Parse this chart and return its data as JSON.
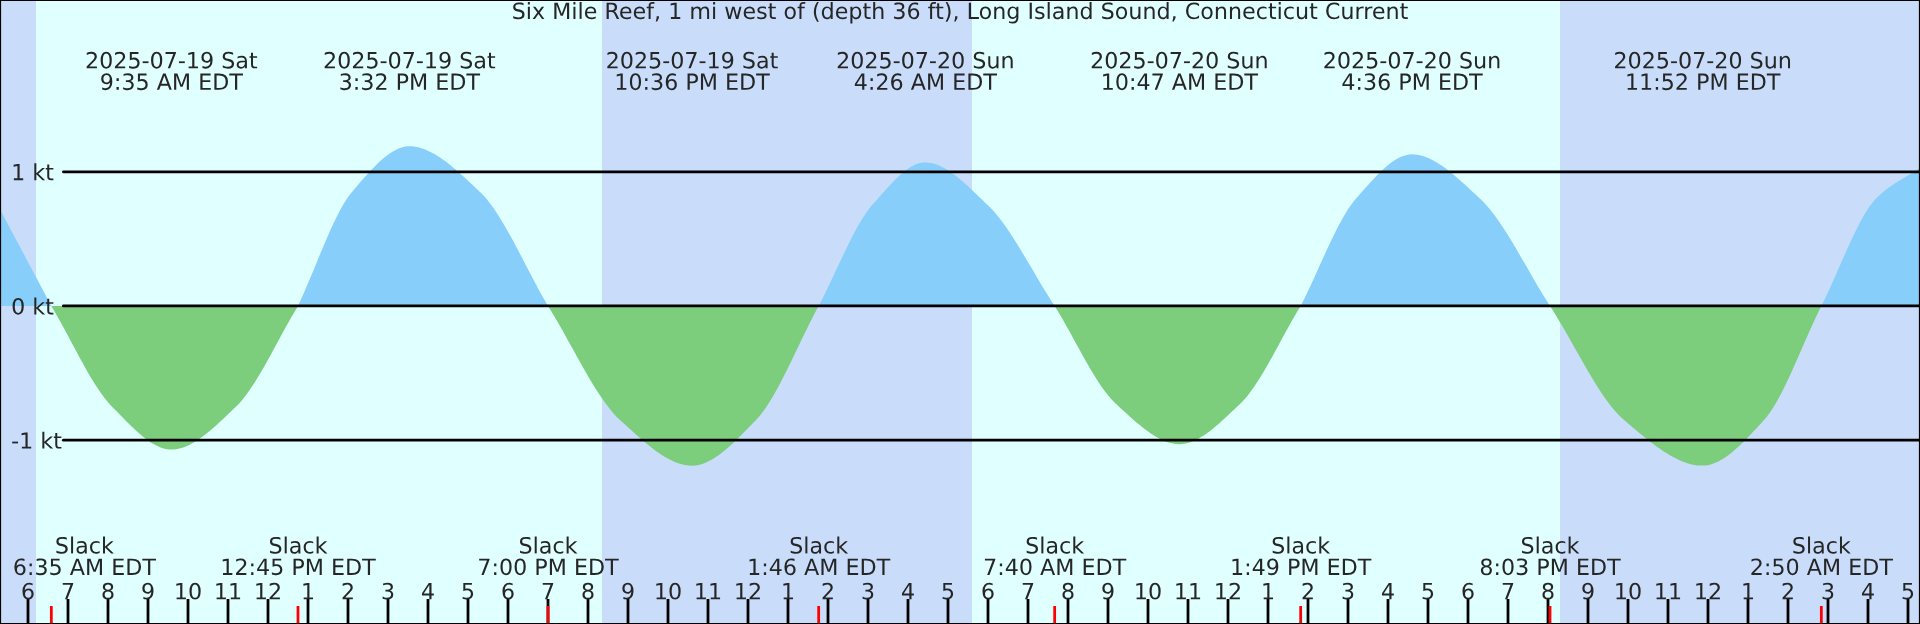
{
  "chart_data": {
    "type": "area",
    "title": "Six Mile Reef, 1 mi west of (depth 36 ft), Long Island Sound, Connecticut Current",
    "x": [
      "2025-07-19T05:18",
      "2025-07-19T06:35",
      "2025-07-19T08:06",
      "2025-07-19T09:35",
      "2025-07-19T11:12",
      "2025-07-19T12:45",
      "2025-07-19T14:06",
      "2025-07-19T15:32",
      "2025-07-19T17:18",
      "2025-07-19T19:00",
      "2025-07-19T20:48",
      "2025-07-19T22:36",
      "2025-07-20T00:12",
      "2025-07-20T01:46",
      "2025-07-20T03:06",
      "2025-07-20T04:26",
      "2025-07-20T06:00",
      "2025-07-20T07:40",
      "2025-07-20T09:12",
      "2025-07-20T10:47",
      "2025-07-20T12:18",
      "2025-07-20T13:49",
      "2025-07-20T15:12",
      "2025-07-20T16:36",
      "2025-07-20T18:18",
      "2025-07-20T20:03",
      "2025-07-20T21:54",
      "2025-07-20T23:52",
      "2025-07-21T01:24",
      "2025-07-21T02:50",
      "2025-07-21T04:12",
      "2025-07-21T05:18"
    ],
    "series": [
      {
        "color": "#87cefa",
        "values": [
          0.72,
          0,
          null,
          null,
          null,
          0,
          0.85,
          1.19,
          0.85,
          0,
          null,
          null,
          null,
          0,
          0.75,
          1.07,
          0.75,
          0,
          null,
          null,
          null,
          0,
          0.8,
          1.13,
          0.8,
          0,
          null,
          null,
          null,
          0,
          0.8,
          1.03
        ]
      },
      {
        "color": "#7ccd7c",
        "values": [
          null,
          0,
          -0.75,
          -1.07,
          -0.75,
          0,
          null,
          null,
          null,
          0,
          -0.85,
          -1.19,
          -0.85,
          0,
          null,
          null,
          null,
          0,
          -0.73,
          -1.03,
          -0.73,
          0,
          null,
          null,
          null,
          0,
          -0.85,
          -1.19,
          -0.85,
          0,
          null,
          null
        ]
      }
    ],
    "xlim": [
      "2025-07-19T05:18",
      "2025-07-21T05:18"
    ],
    "xticks": [
      {
        "value": "2025-07-19T06:00",
        "label": "6"
      },
      {
        "value": "2025-07-19T07:00",
        "label": "7"
      },
      {
        "value": "2025-07-19T08:00",
        "label": "8"
      },
      {
        "value": "2025-07-19T09:00",
        "label": "9"
      },
      {
        "value": "2025-07-19T10:00",
        "label": "10"
      },
      {
        "value": "2025-07-19T11:00",
        "label": "11"
      },
      {
        "value": "2025-07-19T12:00",
        "label": "12"
      },
      {
        "value": "2025-07-19T13:00",
        "label": "1"
      },
      {
        "value": "2025-07-19T14:00",
        "label": "2"
      },
      {
        "value": "2025-07-19T15:00",
        "label": "3"
      },
      {
        "value": "2025-07-19T16:00",
        "label": "4"
      },
      {
        "value": "2025-07-19T17:00",
        "label": "5"
      },
      {
        "value": "2025-07-19T18:00",
        "label": "6"
      },
      {
        "value": "2025-07-19T19:00",
        "label": "7"
      },
      {
        "value": "2025-07-19T20:00",
        "label": "8"
      },
      {
        "value": "2025-07-19T21:00",
        "label": "9"
      },
      {
        "value": "2025-07-19T22:00",
        "label": "10"
      },
      {
        "value": "2025-07-19T23:00",
        "label": "11"
      },
      {
        "value": "2025-07-20T00:00",
        "label": "12"
      },
      {
        "value": "2025-07-20T01:00",
        "label": "1"
      },
      {
        "value": "2025-07-20T02:00",
        "label": "2"
      },
      {
        "value": "2025-07-20T03:00",
        "label": "3"
      },
      {
        "value": "2025-07-20T04:00",
        "label": "4"
      },
      {
        "value": "2025-07-20T05:00",
        "label": "5"
      },
      {
        "value": "2025-07-20T06:00",
        "label": "6"
      },
      {
        "value": "2025-07-20T07:00",
        "label": "7"
      },
      {
        "value": "2025-07-20T08:00",
        "label": "8"
      },
      {
        "value": "2025-07-20T09:00",
        "label": "9"
      },
      {
        "value": "2025-07-20T10:00",
        "label": "10"
      },
      {
        "value": "2025-07-20T11:00",
        "label": "11"
      },
      {
        "value": "2025-07-20T12:00",
        "label": "12"
      },
      {
        "value": "2025-07-20T13:00",
        "label": "1"
      },
      {
        "value": "2025-07-20T14:00",
        "label": "2"
      },
      {
        "value": "2025-07-20T15:00",
        "label": "3"
      },
      {
        "value": "2025-07-20T16:00",
        "label": "4"
      },
      {
        "value": "2025-07-20T17:00",
        "label": "5"
      },
      {
        "value": "2025-07-20T18:00",
        "label": "6"
      },
      {
        "value": "2025-07-20T19:00",
        "label": "7"
      },
      {
        "value": "2025-07-20T20:00",
        "label": "8"
      },
      {
        "value": "2025-07-20T21:00",
        "label": "9"
      },
      {
        "value": "2025-07-20T22:00",
        "label": "10"
      },
      {
        "value": "2025-07-20T23:00",
        "label": "11"
      },
      {
        "value": "2025-07-21T00:00",
        "label": "12"
      },
      {
        "value": "2025-07-21T01:00",
        "label": "1"
      },
      {
        "value": "2025-07-21T02:00",
        "label": "2"
      },
      {
        "value": "2025-07-21T03:00",
        "label": "3"
      },
      {
        "value": "2025-07-21T04:00",
        "label": "4"
      },
      {
        "value": "2025-07-21T05:00",
        "label": "5"
      }
    ],
    "x2lim": [
      "2025-07-19T05:18",
      "2025-07-21T05:18"
    ],
    "x2ticks": [
      {
        "value": "2025-07-19T09:35",
        "label": "2025-07-19 Sat\n9:35 AM EDT"
      },
      {
        "value": "2025-07-19T15:32",
        "label": "2025-07-19 Sat\n3:32 PM EDT"
      },
      {
        "value": "2025-07-19T22:36",
        "label": "2025-07-19 Sat\n10:36 PM EDT"
      },
      {
        "value": "2025-07-20T04:26",
        "label": "2025-07-20 Sun\n4:26 AM EDT"
      },
      {
        "value": "2025-07-20T10:47",
        "label": "2025-07-20 Sun\n10:47 AM EDT"
      },
      {
        "value": "2025-07-20T16:36",
        "label": "2025-07-20 Sun\n4:36 PM EDT"
      },
      {
        "value": "2025-07-20T23:52",
        "label": "2025-07-20 Sun\n11:52 PM EDT"
      }
    ],
    "ylim": [
      -2.37,
      2.28
    ],
    "yticks": [
      {
        "value": 1,
        "label": "1 kt"
      },
      {
        "value": 0,
        "label": "0 kt"
      },
      {
        "value": -1,
        "label": "-1 kt"
      }
    ],
    "grid": "y",
    "bands": [
      {
        "axis": "x",
        "from": "2025-07-19T05:18",
        "to": "2025-07-19T06:12",
        "color": "#c9ddfb"
      },
      {
        "axis": "x",
        "from": "2025-07-19T06:12",
        "to": "2025-07-19T20:21",
        "color": "#e0ffff"
      },
      {
        "axis": "x",
        "from": "2025-07-19T20:21",
        "to": "2025-07-20T05:36",
        "color": "#c9ddfb"
      },
      {
        "axis": "x",
        "from": "2025-07-20T05:36",
        "to": "2025-07-20T20:18",
        "color": "#e0ffff"
      },
      {
        "axis": "x",
        "from": "2025-07-20T20:18",
        "to": "2025-07-21T05:18",
        "color": "#c9ddfb"
      }
    ],
    "annotations": [
      "Slack\n6:35 AM EDT",
      "Slack\n12:45 PM EDT",
      "Slack\n7:00 PM EDT",
      "Slack\n1:46 AM EDT",
      "Slack\n7:40 AM EDT",
      "Slack\n1:49 PM EDT",
      "Slack\n8:03 PM EDT",
      "Slack\n2:50 AM EDT"
    ]
  }
}
